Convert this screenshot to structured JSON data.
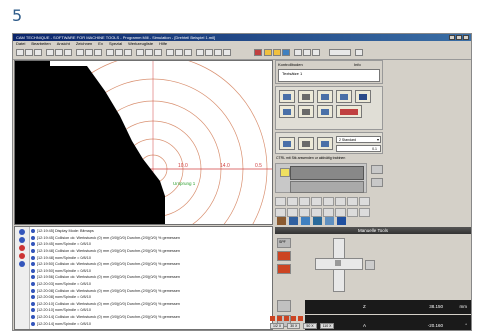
{
  "figure_number": "5",
  "window": {
    "title": "CAM TECHNIQUE - SOFTWARE FOR MACHINE TOOLS - Programm Mill - Simulation - [Drehteil Beispiel 1.mil]",
    "menu": [
      "Datei",
      "Bearbeiten",
      "Ansicht",
      "Zeichnen",
      "Ex",
      "Spezial",
      "Werkzeugliste",
      "Hilfe"
    ]
  },
  "canvas": {
    "dim_labels": [
      "10.0",
      "14.0",
      "0.5"
    ],
    "origin_label": "Ursprung 1",
    "colors": {
      "background": "#ffffff",
      "part": "#000000",
      "rings": "#d99070",
      "axis": "#d04040"
    }
  },
  "log": {
    "lines": [
      "[12:19:45] Display Mode: Bitmaps",
      "[12:19:45] Collision ok: Werkstueck (0) mm (0/0)(0/0) Durchm.(2/0)(0/0) % gemessen",
      "[12:19:45] nom/Spindle = 0/8/10",
      "[12:19:48] Collision ok: Werkstueck (0) mm (0/0)(0/0) Durchm.(2/0)(0/0) % gemessen",
      "[12:19:48] nom/Spindle = 0/8/10",
      "[12:19:50] Collision ok: Werkstueck (0) mm (0/0)(0/0) Durchm.(2/0)(0/0) % gemessen",
      "[12:19:50] nom/Spindle = 0/8/10",
      "[12:19:56] Collision ok: Werkstueck (0) mm (0/0)(0/0) Durchm.(2/0)(0/0) % gemessen",
      "[12:20:03] nom/Spindle = 0/8/10",
      "[12:20:08] Collision ok: Werkstueck (0) mm (0/0)(0/0) Durchm.(2/0)(0/0) % gemessen",
      "[12:20:08] nom/Spindle = 0/8/10",
      "[12:20:10] Collision ok: Werkstueck (0) mm (0/0)(0/0) Durchm.(2/0)(0/0) % gemessen",
      "[12:20:10] nom/Spindle = 0/8/10",
      "[12:20:14] Collision ok: Werkstueck (0) mm (0/0)(0/0) Durchm.(2/0)(0/0) % gemessen",
      "[12:20:14] nom/Spindle = 0/8/10"
    ]
  },
  "right_panel": {
    "top_label": "Kontrollboden",
    "top_small": "Info",
    "field_value": "Textsätze 1",
    "dropdown": "2 Standard",
    "spin_value": "0.1",
    "hint_line": "CTRL mit Stk anwenden ur aktivätig trabinen",
    "section_title": "Manuelle Tools",
    "dro": [
      {
        "axis": "Z",
        "value": "38.150",
        "unit": "mm"
      },
      {
        "axis": "Y",
        "value": "292.250",
        "unit": "mm"
      },
      {
        "axis": "A",
        "value": "-20.160",
        "unit": "°"
      }
    ],
    "bottom_tabs": [
      "1/2 X",
      "30 X",
      "50 X",
      "110 X"
    ],
    "left_btn_labels": [
      "SPF",
      "Feed",
      "Speed",
      "Jog"
    ]
  }
}
